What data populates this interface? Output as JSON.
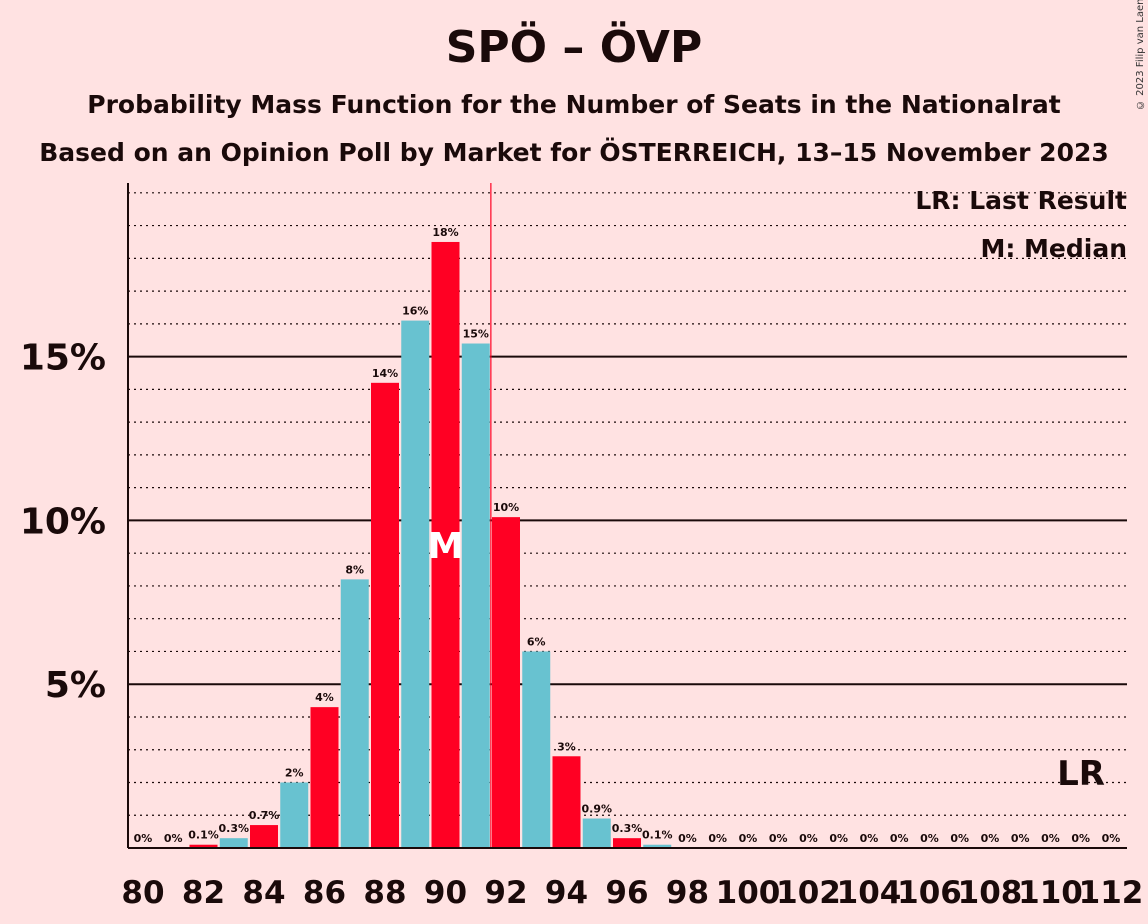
{
  "title": "SPÖ – ÖVP",
  "subtitle_1": "Probability Mass Function for the Number of Seats in the Nationalrat",
  "subtitle_2": "Based on an Opinion Poll by Market for ÖSTERREICH, 13–15 November 2023",
  "copyright": "© 2023 Filip van Laenen",
  "legend": {
    "last_result": "LR: Last Result",
    "median": "M: Median"
  },
  "markers": {
    "median_letter": "M",
    "last_result_letter": "LR"
  },
  "colors": {
    "background": "#FFE2E2",
    "red": "#FF0023",
    "teal": "#68C2D0",
    "text": "#1a0a0a"
  },
  "chart_data": {
    "type": "bar",
    "categories": [
      80,
      81,
      82,
      83,
      84,
      85,
      86,
      87,
      88,
      89,
      90,
      91,
      92,
      93,
      94,
      95,
      96,
      97,
      98,
      99,
      100,
      101,
      102,
      103,
      104,
      105,
      106,
      107,
      108,
      109,
      110,
      111,
      112
    ],
    "values": [
      0,
      0,
      0.1,
      0.3,
      0.7,
      2,
      4.3,
      8.2,
      14.2,
      16.1,
      18.5,
      15.4,
      10.1,
      6,
      2.8,
      0.9,
      0.3,
      0.1,
      0,
      0,
      0,
      0,
      0,
      0,
      0,
      0,
      0,
      0,
      0,
      0,
      0,
      0,
      0
    ],
    "value_labels": [
      "0%",
      "0%",
      "0.1%",
      "0.3%",
      "0.7%",
      "2%",
      "4%",
      "8%",
      "14%",
      "16%",
      "18%",
      "15%",
      "10%",
      "6%",
      "3%",
      "0.9%",
      "0.3%",
      "0.1%",
      "0%",
      "0%",
      "0%",
      "0%",
      "0%",
      "0%",
      "0%",
      "0%",
      "0%",
      "0%",
      "0%",
      "0%",
      "0%",
      "0%",
      "0%"
    ],
    "x_tick_labels": [
      "80",
      "82",
      "84",
      "86",
      "88",
      "90",
      "92",
      "94",
      "96",
      "98",
      "100",
      "102",
      "104",
      "106",
      "108",
      "110",
      "112"
    ],
    "y_ticks": [
      5,
      10,
      15
    ],
    "y_tick_labels": [
      "5%",
      "10%",
      "15%"
    ],
    "ylim": [
      0,
      20.3
    ],
    "grid": true,
    "median": 90,
    "last_result": 112,
    "majority_line": 91.5,
    "xlabel": "",
    "ylabel": ""
  }
}
